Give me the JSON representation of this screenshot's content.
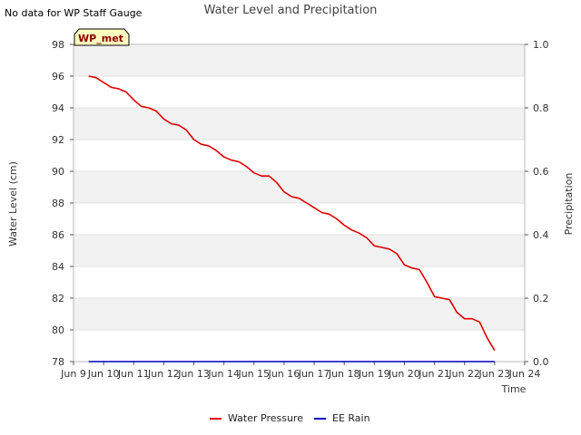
{
  "top_note": "No data for WP Staff Gauge",
  "chart_data": {
    "type": "line",
    "title": "Water Level and Precipitation",
    "badge": "WP_met",
    "xlabel": "Time",
    "ylabel_left": "Water Level (cm)",
    "ylabel_right": "Precipitation",
    "x_ticks": [
      "Jun 9",
      "Jun 10",
      "Jun 11",
      "Jun 12",
      "Jun 13",
      "Jun 14",
      "Jun 15",
      "Jun 16",
      "Jun 17",
      "Jun 18",
      "Jun 19",
      "Jun 20",
      "Jun 21",
      "Jun 22",
      "Jun 23",
      "Jun 24"
    ],
    "xlim": [
      "Jun 9",
      "Jun 24"
    ],
    "ylim_left": [
      78,
      98
    ],
    "y_ticks_left": [
      "78",
      "80",
      "82",
      "84",
      "86",
      "88",
      "90",
      "92",
      "94",
      "96",
      "98"
    ],
    "ylim_right": [
      0.0,
      1.0
    ],
    "y_ticks_right": [
      "0.0",
      "0.2",
      "0.4",
      "0.6",
      "0.8",
      "1.0"
    ],
    "grid": "horizontal bands",
    "legend_position": "bottom-center",
    "series": [
      {
        "name": "Water Pressure",
        "axis": "left",
        "color": "#dd0000",
        "x": [
          "Jun 9 12:00",
          "Jun 9 18:00",
          "Jun 10 00:00",
          "Jun 10 06:00",
          "Jun 10 12:00",
          "Jun 10 18:00",
          "Jun 11 00:00",
          "Jun 11 06:00",
          "Jun 11 12:00",
          "Jun 11 18:00",
          "Jun 12 00:00",
          "Jun 12 06:00",
          "Jun 12 12:00",
          "Jun 12 18:00",
          "Jun 13 00:00",
          "Jun 13 06:00",
          "Jun 13 12:00",
          "Jun 13 18:00",
          "Jun 14 00:00",
          "Jun 14 06:00",
          "Jun 14 12:00",
          "Jun 14 18:00",
          "Jun 15 00:00",
          "Jun 15 06:00",
          "Jun 15 12:00",
          "Jun 15 18:00",
          "Jun 16 00:00",
          "Jun 16 06:00",
          "Jun 16 12:00",
          "Jun 16 18:00",
          "Jun 17 00:00",
          "Jun 17 06:00",
          "Jun 17 12:00",
          "Jun 17 18:00",
          "Jun 18 00:00",
          "Jun 18 06:00",
          "Jun 18 12:00",
          "Jun 18 18:00",
          "Jun 19 00:00",
          "Jun 19 06:00",
          "Jun 19 12:00",
          "Jun 19 18:00",
          "Jun 20 00:00",
          "Jun 20 06:00",
          "Jun 20 12:00",
          "Jun 20 18:00",
          "Jun 21 00:00",
          "Jun 21 06:00",
          "Jun 21 12:00",
          "Jun 21 18:00",
          "Jun 22 00:00",
          "Jun 22 06:00",
          "Jun 22 12:00",
          "Jun 22 18:00",
          "Jun 23 00:00"
        ],
        "values": [
          96.0,
          95.9,
          95.6,
          95.3,
          95.2,
          95.0,
          94.5,
          94.1,
          94.0,
          93.8,
          93.3,
          93.0,
          92.9,
          92.6,
          92.0,
          91.7,
          91.6,
          91.3,
          90.9,
          90.7,
          90.6,
          90.3,
          89.9,
          89.7,
          89.7,
          89.3,
          88.7,
          88.4,
          88.3,
          88.0,
          87.7,
          87.4,
          87.3,
          87.0,
          86.6,
          86.3,
          86.1,
          85.8,
          85.3,
          85.2,
          85.1,
          84.8,
          84.1,
          83.9,
          83.8,
          83.0,
          82.1,
          82.0,
          81.9,
          81.1,
          80.7,
          80.7,
          80.5,
          79.5,
          78.7
        ]
      },
      {
        "name": "EE Rain",
        "axis": "right",
        "color": "#0000bb",
        "x": [
          "Jun 9 12:00",
          "Jun 23 00:00"
        ],
        "values": [
          0.0,
          0.0
        ]
      }
    ]
  }
}
